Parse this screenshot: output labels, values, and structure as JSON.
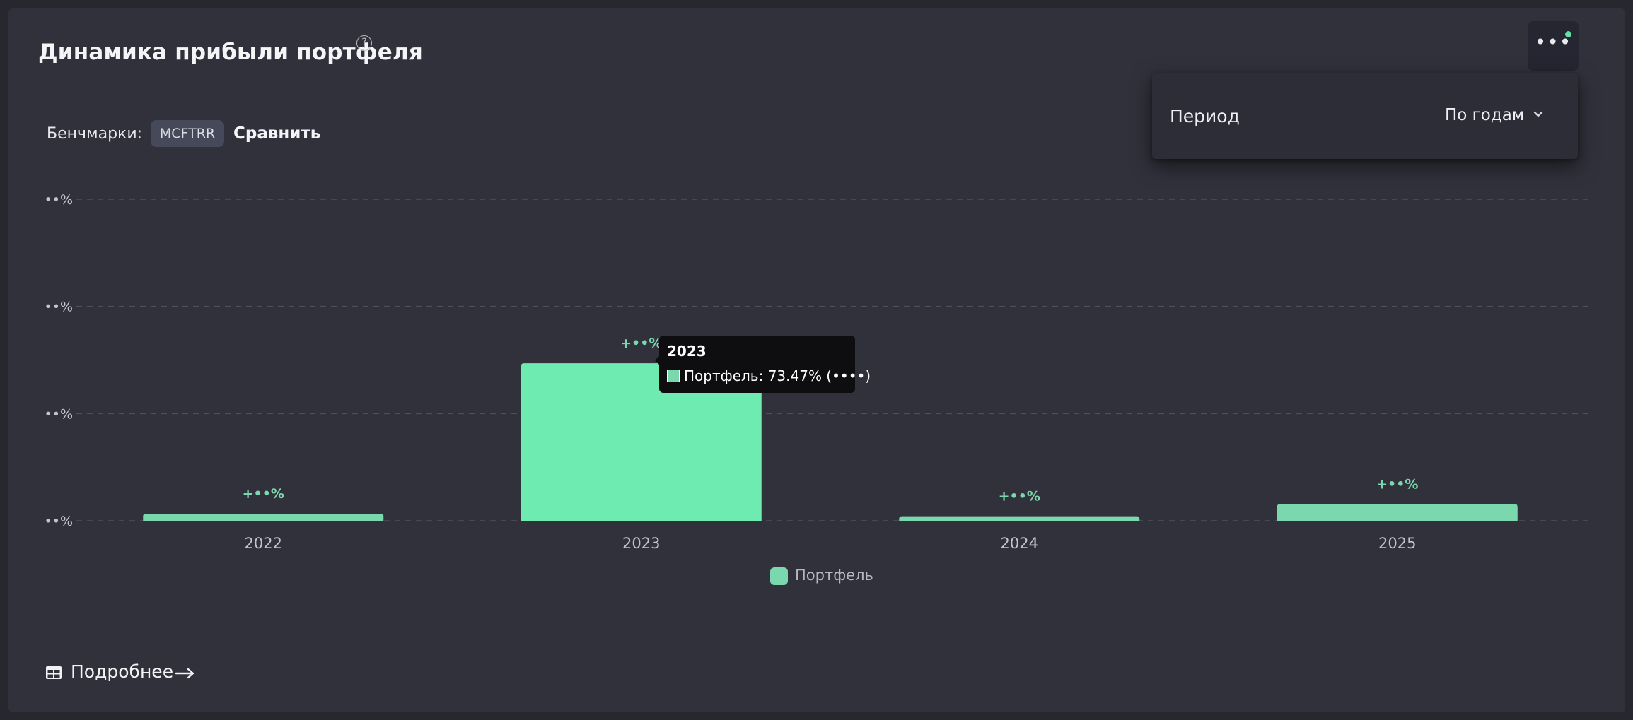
{
  "title": "Динамика прибыли портфеля",
  "help_icon": "question-circle-icon",
  "more_icon": "more-dots-icon",
  "dropdown": {
    "period_label": "Период",
    "period_value": "По годам",
    "chevron_icon": "chevron-down-icon"
  },
  "benchmarks": {
    "label": "Бенчмарки:",
    "tag": "MCFTRR",
    "compare": "Сравнить"
  },
  "colors": {
    "accent": "#62e0a5",
    "bar": "#7bd8ae",
    "bar_highlight": "#6eebb1",
    "background": "#31313c"
  },
  "chart_data": {
    "type": "bar",
    "categories": [
      "2022",
      "2023",
      "2024",
      "2025"
    ],
    "series": [
      {
        "name": "Портфель",
        "values": [
          3.3,
          73.47,
          2.1,
          7.8
        ]
      }
    ],
    "data_labels": [
      "+••%",
      "+••%",
      "+••%",
      "+••%"
    ],
    "y_tick_labels": [
      "••%",
      "••%",
      "••%",
      "••%"
    ],
    "ylim": [
      0,
      150
    ],
    "grid": true,
    "legend": "bottom-center",
    "highlighted_category": "2023"
  },
  "tooltip": {
    "title": "2023",
    "text": "Портфель: 73.47% (••••)"
  },
  "legend_label": "Портфель",
  "footer": {
    "details_label": "Подробнее",
    "grid_icon": "table-icon",
    "arrow_icon": "arrow-right-icon"
  }
}
